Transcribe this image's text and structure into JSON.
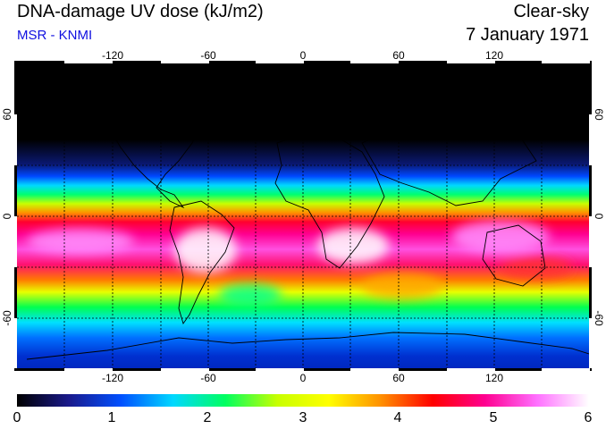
{
  "title": "DNA-damage UV dose (kJ/m2)",
  "source": "MSR - KNMI",
  "condition": "Clear-sky",
  "date": "7 January 1971",
  "map": {
    "lon_ticks": [
      "-120",
      "-60",
      "0",
      "60",
      "120"
    ],
    "lat_ticks": [
      "60",
      "0",
      "-60"
    ],
    "lon_range": [
      -180,
      180
    ],
    "lat_range": [
      -90,
      90
    ]
  },
  "colorbar": {
    "labels": [
      "0",
      "1",
      "2",
      "3",
      "4",
      "5",
      "6"
    ],
    "min": 0,
    "max": 6,
    "colors": [
      "#000000",
      "#1a1a8c",
      "#0050ff",
      "#00d8ff",
      "#00ff60",
      "#c8ff00",
      "#ffff00",
      "#ff9000",
      "#ff0000",
      "#ff0090",
      "#ff70ff",
      "#ffffff"
    ]
  }
}
